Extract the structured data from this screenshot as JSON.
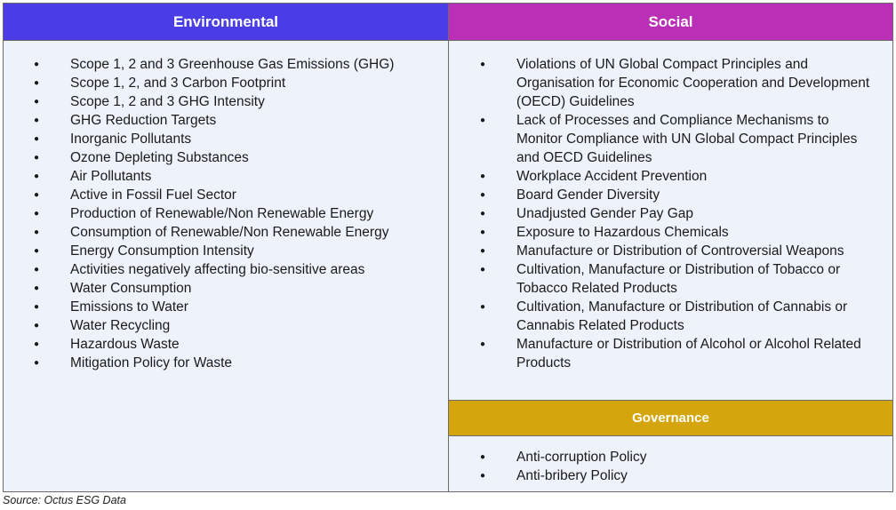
{
  "environmental": {
    "header": "Environmental",
    "items": [
      "Scope 1, 2 and 3 Greenhouse Gas Emissions (GHG)",
      "Scope 1, 2, and 3  Carbon Footprint",
      "Scope 1, 2 and 3 GHG Intensity",
      "GHG Reduction Targets",
      "Inorganic Pollutants",
      "Ozone Depleting Substances",
      "Air Pollutants",
      "Active in Fossil Fuel Sector",
      "Production of Renewable/Non Renewable Energy",
      "Consumption of Renewable/Non Renewable Energy",
      "Energy Consumption Intensity",
      "Activities negatively affecting bio-sensitive areas",
      "Water Consumption",
      "Emissions to Water",
      "Water Recycling",
      "Hazardous Waste",
      "Mitigation Policy for Waste"
    ]
  },
  "social": {
    "header": "Social",
    "items": [
      "Violations of UN Global Compact Principles and Organisation for Economic Cooperation and Development (OECD) Guidelines",
      "Lack of Processes and Compliance Mechanisms to Monitor Compliance with UN Global Compact Principles and OECD Guidelines",
      "Workplace Accident Prevention",
      "Board Gender Diversity",
      "Unadjusted Gender Pay Gap",
      "Exposure to Hazardous Chemicals",
      "Manufacture or Distribution of Controversial Weapons",
      "Cultivation, Manufacture or Distribution of Tobacco or Tobacco Related Products",
      "Cultivation, Manufacture or Distribution of Cannabis or Cannabis Related Products",
      "Manufacture or Distribution of Alcohol or Alcohol Related Products"
    ]
  },
  "governance": {
    "header": "Governance",
    "items": [
      "Anti-corruption Policy",
      "Anti-bribery Policy"
    ]
  },
  "source": "Source: Octus ESG Data"
}
